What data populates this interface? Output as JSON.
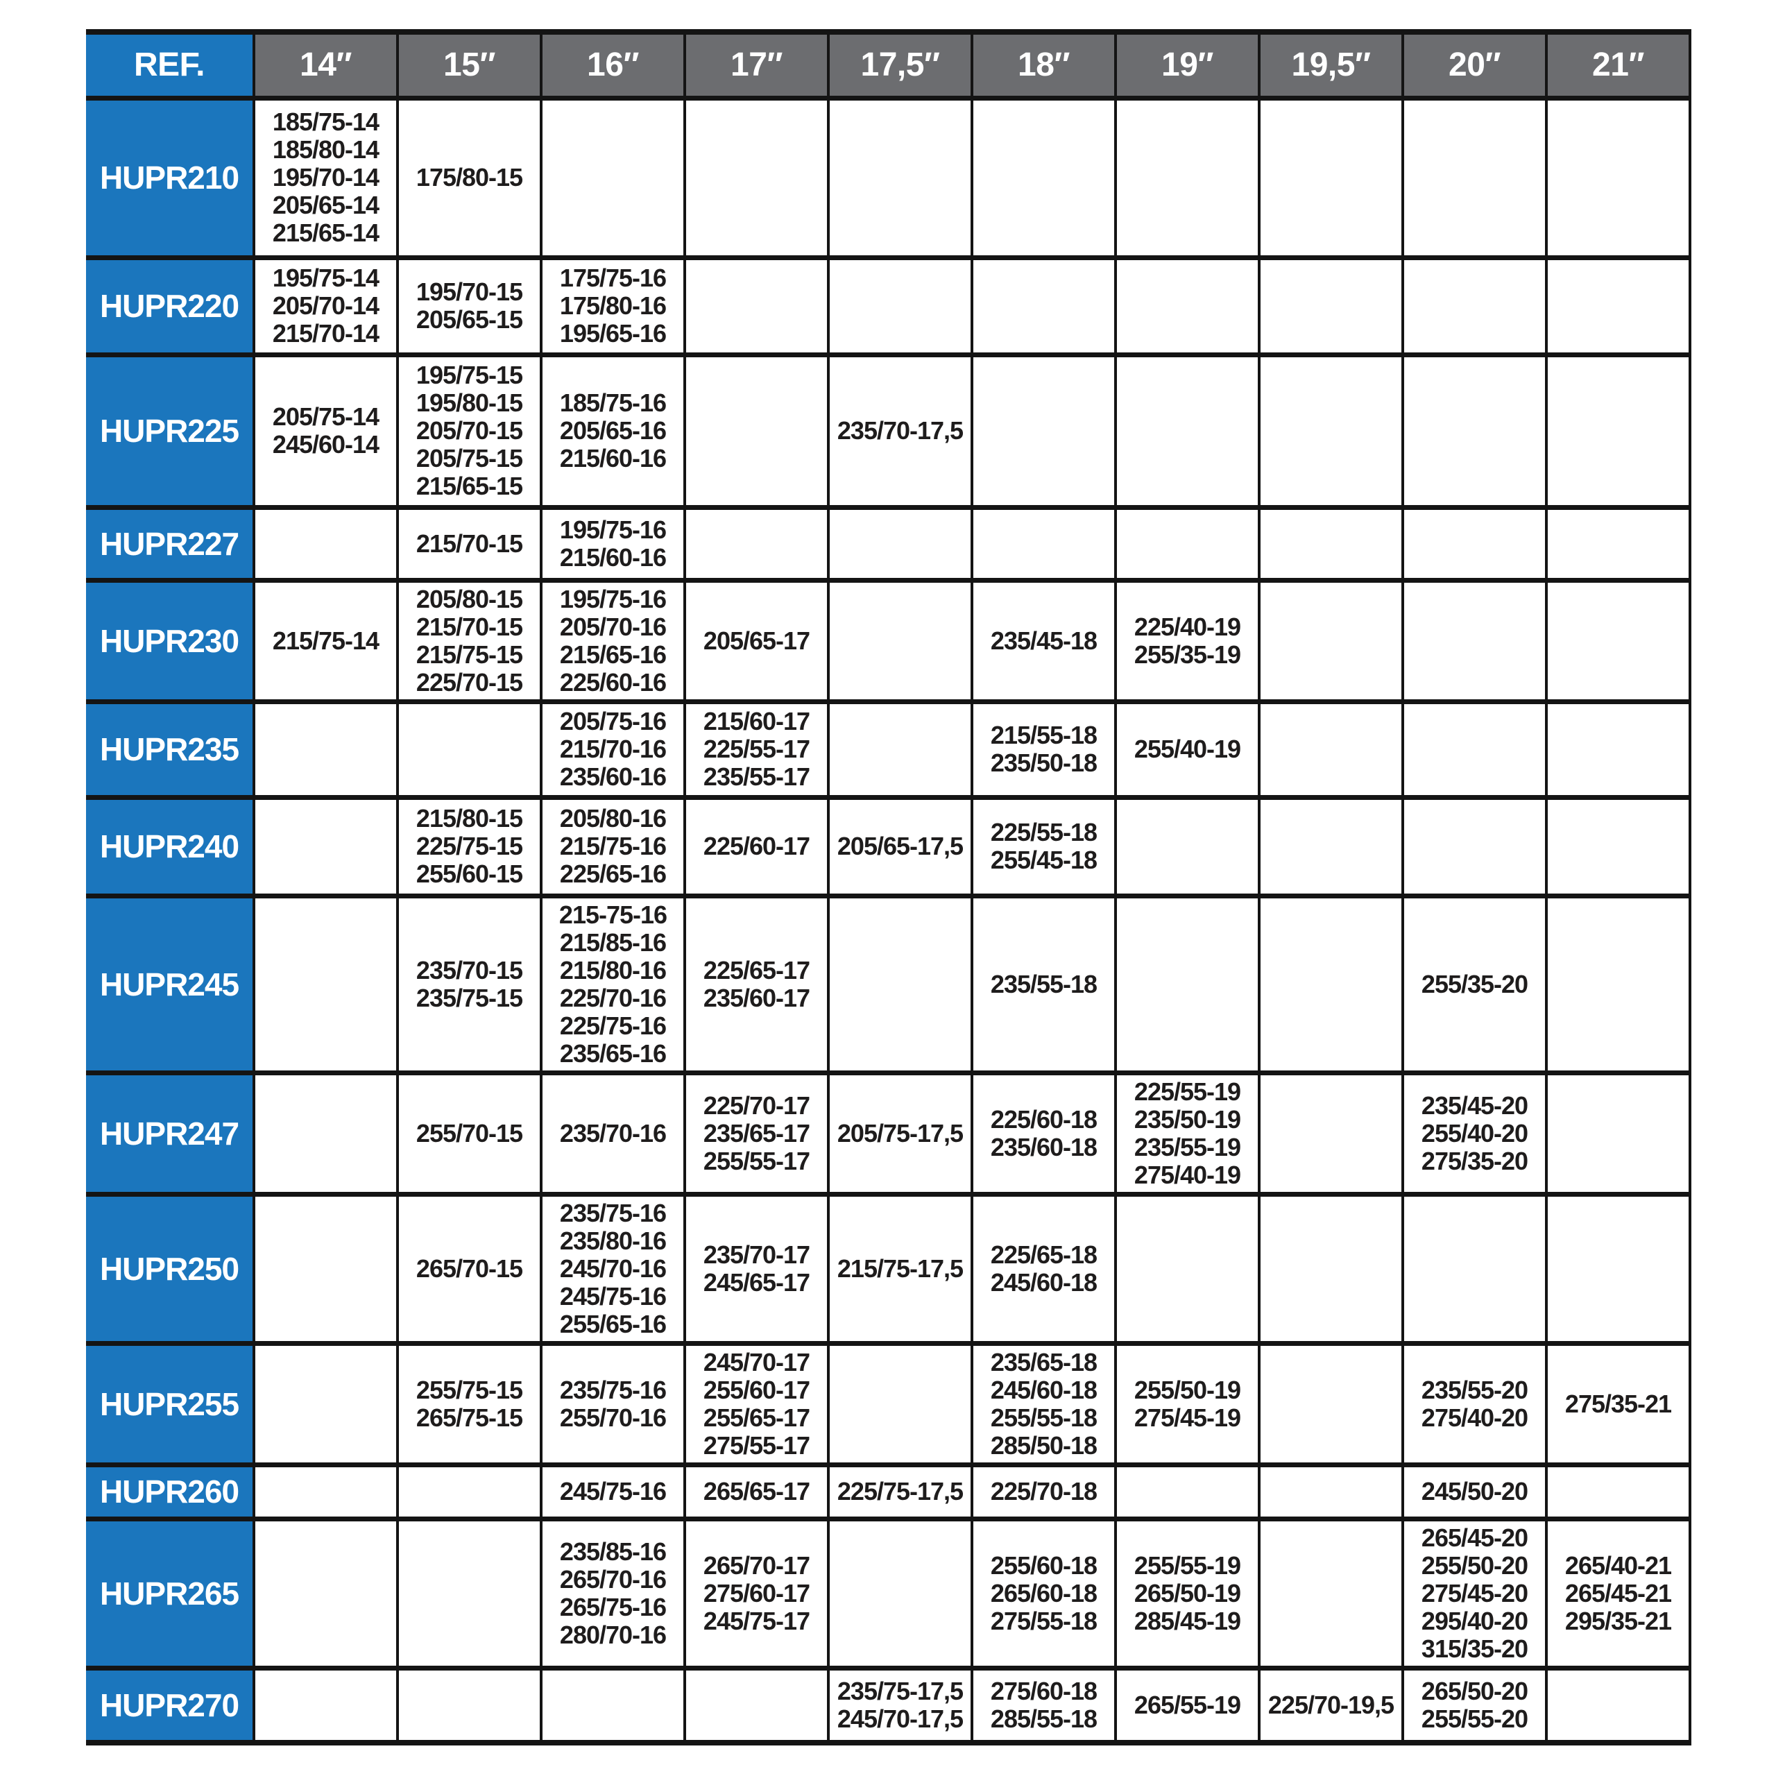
{
  "colors": {
    "blue": "#1b76bd",
    "gray": "#6c6d70",
    "border": "#141414",
    "text": "#1e1c1c"
  },
  "table": {
    "ref_header": "REF.",
    "columns": [
      "14″",
      "15″",
      "16″",
      "17″",
      "17,5″",
      "18″",
      "19″",
      "19,5″",
      "20″",
      "21″"
    ],
    "rows": [
      {
        "ref": "HUPR210",
        "sizes": [
          [
            "185/75-14",
            "185/80-14",
            "195/70-14",
            "205/65-14",
            "215/65-14"
          ],
          [
            "175/80-15"
          ],
          [],
          [],
          [],
          [],
          [],
          [],
          [],
          []
        ]
      },
      {
        "ref": "HUPR220",
        "sizes": [
          [
            "195/75-14",
            "205/70-14",
            "215/70-14"
          ],
          [
            "195/70-15",
            "205/65-15"
          ],
          [
            "175/75-16",
            "175/80-16",
            "195/65-16"
          ],
          [],
          [],
          [],
          [],
          [],
          [],
          []
        ]
      },
      {
        "ref": "HUPR225",
        "sizes": [
          [
            "205/75-14",
            "245/60-14"
          ],
          [
            "195/75-15",
            "195/80-15",
            "205/70-15",
            "205/75-15",
            "215/65-15"
          ],
          [
            "185/75-16",
            "205/65-16",
            "215/60-16"
          ],
          [],
          [
            "235/70-17,5"
          ],
          [],
          [],
          [],
          [],
          []
        ]
      },
      {
        "ref": "HUPR227",
        "sizes": [
          [],
          [
            "215/70-15"
          ],
          [
            "195/75-16",
            "215/60-16"
          ],
          [],
          [],
          [],
          [],
          [],
          [],
          []
        ]
      },
      {
        "ref": "HUPR230",
        "sizes": [
          [
            "215/75-14"
          ],
          [
            "205/80-15",
            "215/70-15",
            "215/75-15",
            "225/70-15"
          ],
          [
            "195/75-16",
            "205/70-16",
            "215/65-16",
            "225/60-16"
          ],
          [
            "205/65-17"
          ],
          [],
          [
            "235/45-18"
          ],
          [
            "225/40-19",
            "255/35-19"
          ],
          [],
          [],
          []
        ]
      },
      {
        "ref": "HUPR235",
        "sizes": [
          [],
          [],
          [
            "205/75-16",
            "215/70-16",
            "235/60-16"
          ],
          [
            "215/60-17",
            "225/55-17",
            "235/55-17"
          ],
          [],
          [
            "215/55-18",
            "235/50-18"
          ],
          [
            "255/40-19"
          ],
          [],
          [],
          []
        ]
      },
      {
        "ref": "HUPR240",
        "sizes": [
          [],
          [
            "215/80-15",
            "225/75-15",
            "255/60-15"
          ],
          [
            "205/80-16",
            "215/75-16",
            "225/65-16"
          ],
          [
            "225/60-17"
          ],
          [
            "205/65-17,5"
          ],
          [
            "225/55-18",
            "255/45-18"
          ],
          [],
          [],
          [],
          []
        ]
      },
      {
        "ref": "HUPR245",
        "sizes": [
          [],
          [
            "235/70-15",
            "235/75-15"
          ],
          [
            "215-75-16",
            "215/85-16",
            "215/80-16",
            "225/70-16",
            "225/75-16",
            "235/65-16"
          ],
          [
            "225/65-17",
            "235/60-17"
          ],
          [],
          [
            "235/55-18"
          ],
          [],
          [],
          [
            "255/35-20"
          ],
          []
        ]
      },
      {
        "ref": "HUPR247",
        "sizes": [
          [],
          [
            "255/70-15"
          ],
          [
            "235/70-16"
          ],
          [
            "225/70-17",
            "235/65-17",
            "255/55-17"
          ],
          [
            "205/75-17,5"
          ],
          [
            "225/60-18",
            "235/60-18"
          ],
          [
            "225/55-19",
            "235/50-19",
            "235/55-19",
            "275/40-19"
          ],
          [],
          [
            "235/45-20",
            "255/40-20",
            "275/35-20"
          ],
          []
        ]
      },
      {
        "ref": "HUPR250",
        "sizes": [
          [],
          [
            "265/70-15"
          ],
          [
            "235/75-16",
            "235/80-16",
            "245/70-16",
            "245/75-16",
            "255/65-16"
          ],
          [
            "235/70-17",
            "245/65-17"
          ],
          [
            "215/75-17,5"
          ],
          [
            "225/65-18",
            "245/60-18"
          ],
          [],
          [],
          [],
          []
        ]
      },
      {
        "ref": "HUPR255",
        "sizes": [
          [],
          [
            "255/75-15",
            "265/75-15"
          ],
          [
            "235/75-16",
            "255/70-16"
          ],
          [
            "245/70-17",
            "255/60-17",
            "255/65-17",
            "275/55-17"
          ],
          [],
          [
            "235/65-18",
            "245/60-18",
            "255/55-18",
            "285/50-18"
          ],
          [
            "255/50-19",
            "275/45-19"
          ],
          [],
          [
            "235/55-20",
            "275/40-20"
          ],
          [
            "275/35-21"
          ]
        ]
      },
      {
        "ref": "HUPR260",
        "sizes": [
          [],
          [],
          [
            "245/75-16"
          ],
          [
            "265/65-17"
          ],
          [
            "225/75-17,5"
          ],
          [
            "225/70-18"
          ],
          [],
          [],
          [
            "245/50-20"
          ],
          []
        ]
      },
      {
        "ref": "HUPR265",
        "sizes": [
          [],
          [],
          [
            "235/85-16",
            "265/70-16",
            "265/75-16",
            "280/70-16"
          ],
          [
            "265/70-17",
            "275/60-17",
            "245/75-17"
          ],
          [],
          [
            "255/60-18",
            "265/60-18",
            "275/55-18"
          ],
          [
            "255/55-19",
            "265/50-19",
            "285/45-19"
          ],
          [],
          [
            "265/45-20",
            "255/50-20",
            "275/45-20",
            "295/40-20",
            "315/35-20"
          ],
          [
            "265/40-21",
            "265/45-21",
            "295/35-21"
          ]
        ]
      },
      {
        "ref": "HUPR270",
        "sizes": [
          [],
          [],
          [],
          [],
          [
            "235/75-17,5",
            "245/70-17,5"
          ],
          [
            "275/60-18",
            "285/55-18"
          ],
          [
            "265/55-19"
          ],
          [
            "225/70-19,5"
          ],
          [
            "265/50-20",
            "255/55-20"
          ],
          []
        ]
      }
    ]
  }
}
